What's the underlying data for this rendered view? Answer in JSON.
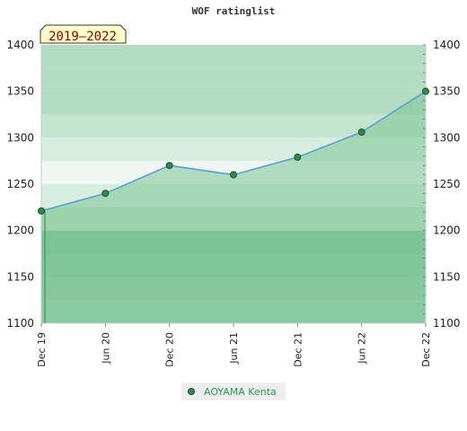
{
  "chart_data": {
    "type": "area",
    "title": "WOF ratinglist",
    "badge": "2019–2022",
    "categories": [
      "Dec 19",
      "Jun 20",
      "Dec 20",
      "Jun 21",
      "Dec 21",
      "Jun 22",
      "Dec 22"
    ],
    "series": [
      {
        "name": "AOYAMA Kenta",
        "values": [
          1221,
          1240,
          1270,
          1260,
          1279,
          1306,
          1350
        ]
      }
    ],
    "ylim": [
      1100,
      1400
    ],
    "yticks": [
      1100,
      1150,
      1200,
      1250,
      1300,
      1350,
      1400
    ],
    "y_axis_both_sides": true,
    "grid": true,
    "legend_position": "bottom",
    "colors": {
      "line": "#5b9bd5",
      "marker": "#2f8a4f",
      "fill": "#7cc495",
      "badge_fill": "#ffffcc",
      "legend_bg": "#eeeeee",
      "legend_text": "#2e9b55"
    }
  }
}
